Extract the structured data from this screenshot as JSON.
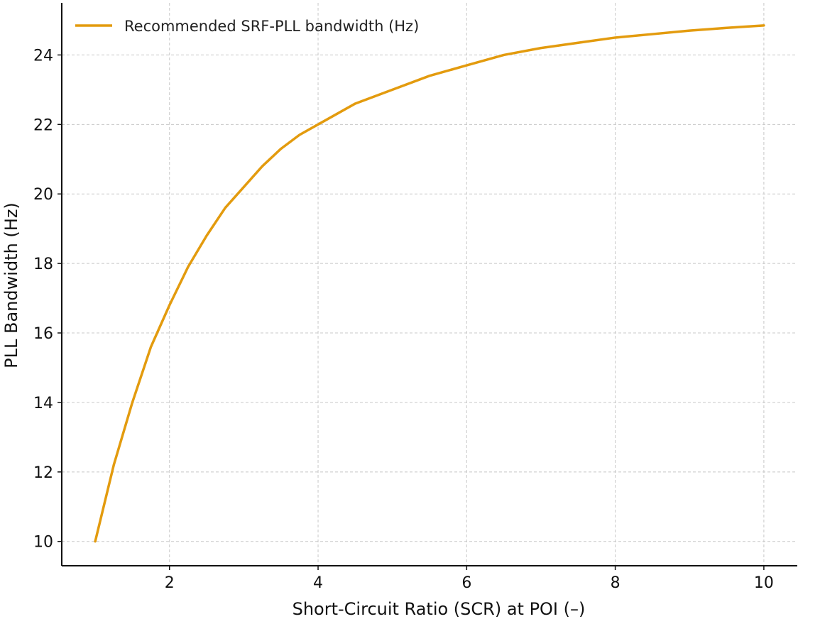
{
  "chart_data": {
    "type": "line",
    "title": "",
    "xlabel": "Short-Circuit Ratio (SCR) at POI (–)",
    "ylabel": "PLL Bandwidth (Hz)",
    "xlim": [
      0.55,
      10.45
    ],
    "ylim": [
      9.3,
      25.5
    ],
    "xticks": [
      2,
      4,
      6,
      8,
      10
    ],
    "yticks": [
      10,
      12,
      14,
      16,
      18,
      20,
      22,
      24
    ],
    "grid": true,
    "legend_position": "top-left",
    "series": [
      {
        "name": "Recommended SRF-PLL bandwidth (Hz)",
        "color": "#E39B0E",
        "x": [
          1.0,
          1.25,
          1.5,
          1.75,
          2.0,
          2.25,
          2.5,
          2.75,
          3.0,
          3.25,
          3.5,
          3.75,
          4.0,
          4.5,
          5.0,
          5.5,
          6.0,
          6.5,
          7.0,
          7.5,
          8.0,
          8.5,
          9.0,
          9.5,
          10.0
        ],
        "y": [
          10.0,
          12.2,
          14.0,
          15.6,
          16.8,
          17.9,
          18.8,
          19.6,
          20.2,
          20.8,
          21.3,
          21.7,
          22.0,
          22.6,
          23.0,
          23.4,
          23.7,
          24.0,
          24.2,
          24.35,
          24.5,
          24.6,
          24.7,
          24.78,
          24.85
        ]
      }
    ]
  }
}
